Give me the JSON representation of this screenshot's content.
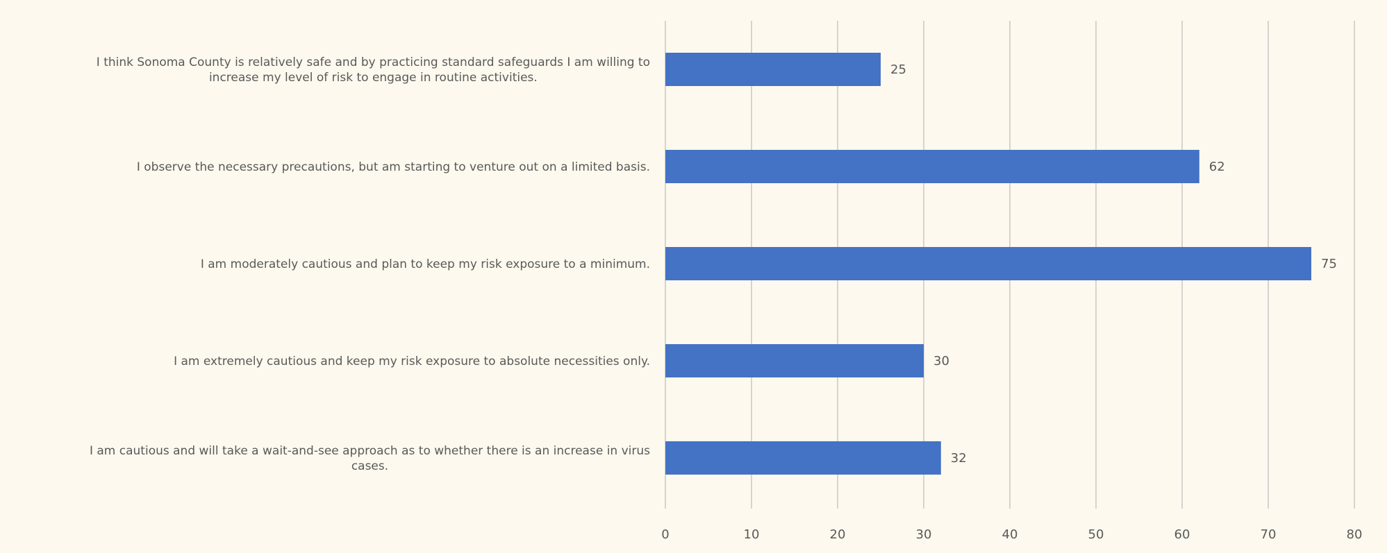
{
  "chart_data": {
    "type": "bar",
    "orientation": "horizontal",
    "categories": [
      "I think Sonoma County is relatively safe and by practicing standard safeguards I am willing to increase my level of risk to engage in routine activities.",
      "I observe the necessary precautions, but am starting to venture out on a limited basis.",
      "I am moderately cautious and plan to keep my risk exposure to a minimum.",
      "I am extremely cautious and keep my risk exposure to absolute necessities only.",
      "I am cautious and will take a wait-and-see approach as to whether there is an increase in virus cases."
    ],
    "category_lines": [
      [
        "I think Sonoma County is relatively safe and by practicing standard safeguards I am willing to",
        "increase my level of risk to engage in routine activities."
      ],
      [
        "I observe the necessary precautions, but am starting to venture out on a limited basis."
      ],
      [
        "I am moderately cautious and plan to keep my risk exposure to a minimum."
      ],
      [
        "I am extremely cautious and keep my risk exposure to absolute necessities only."
      ],
      [
        "I am cautious and will take a wait-and-see approach as to whether there is an increase in virus",
        "cases."
      ]
    ],
    "values": [
      25,
      62,
      75,
      30,
      32
    ],
    "xlim": [
      0,
      80
    ],
    "xticks": [
      0,
      10,
      20,
      30,
      40,
      50,
      60,
      70,
      80
    ],
    "title": "",
    "xlabel": "",
    "ylabel": "",
    "grid": "vertical",
    "legend": "none",
    "data_labels": true,
    "colors": {
      "bar": "#4472c4",
      "background": "#fdf9ee",
      "grid": "#bfbfbf",
      "text": "#595959"
    }
  }
}
